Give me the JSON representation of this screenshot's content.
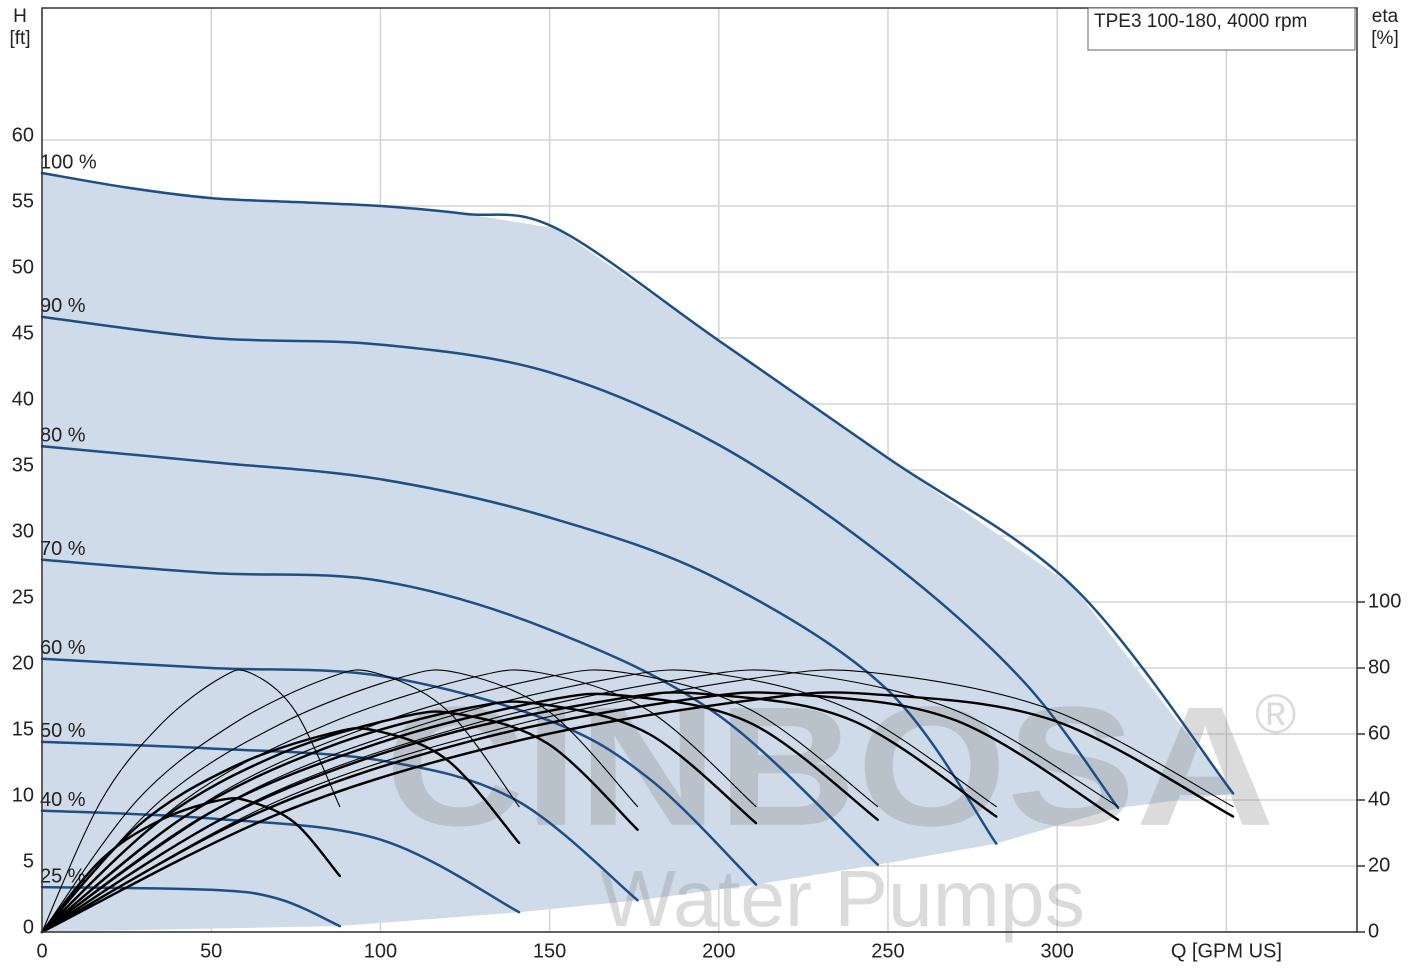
{
  "chart_data": {
    "type": "line",
    "title": "TPE3 100-180, 4000 rpm",
    "ylabel": [
      "H",
      "[ft]"
    ],
    "y2label": [
      "eta",
      "[%]"
    ],
    "watermark": {
      "brand": "CINBOSA",
      "mark": "®",
      "tagline": "Water Pumps"
    },
    "xlim": [
      0,
      388.6
    ],
    "ylim": [
      0,
      70
    ],
    "y2lim": [
      0,
      280
    ],
    "xticks": [
      0,
      50,
      100,
      150,
      200,
      250,
      300,
      {
        "value": 350,
        "label": "Q [GPM US]"
      }
    ],
    "yticks": [
      0,
      5,
      10,
      15,
      20,
      25,
      30,
      35,
      40,
      45,
      50,
      55,
      60
    ],
    "y2ticks": [
      0,
      20,
      40,
      60,
      80,
      100
    ],
    "grid": true,
    "fill_color": "#cfdbe8",
    "series": [
      {
        "name": "100 %",
        "color": "#1c4f86",
        "linewidth": 2.5,
        "x": [
          0,
          25,
          50,
          75,
          100,
          125,
          152,
          200,
          250,
          305,
          352
        ],
        "values": [
          57.5,
          56.4,
          55.6,
          55.3,
          55.0,
          54.4,
          53.3,
          44.8,
          35.9,
          26.1,
          10.5
        ]
      },
      {
        "name": "90 %",
        "color": "#1c4f86",
        "linewidth": 2.5,
        "x": [
          0,
          50,
          100,
          150,
          200,
          250,
          290,
          318
        ],
        "values": [
          46.6,
          45.0,
          44.5,
          42.4,
          36.9,
          28.2,
          19.0,
          9.4
        ]
      },
      {
        "name": "80 %",
        "color": "#1c4f86",
        "linewidth": 2.5,
        "x": [
          0,
          50,
          100,
          150,
          200,
          250,
          282
        ],
        "values": [
          36.8,
          35.6,
          34.3,
          31.4,
          26.7,
          18.3,
          6.7
        ]
      },
      {
        "name": "70 %",
        "color": "#1c4f86",
        "linewidth": 2.5,
        "x": [
          0,
          50,
          100,
          150,
          200,
          247
        ],
        "values": [
          28.2,
          27.2,
          26.6,
          22.9,
          16.4,
          5.1
        ]
      },
      {
        "name": "60 %",
        "color": "#1c4f86",
        "linewidth": 2.5,
        "x": [
          0,
          50,
          100,
          150,
          180,
          211
        ],
        "values": [
          20.7,
          20.0,
          19.4,
          16.0,
          11.5,
          3.6
        ]
      },
      {
        "name": "50 %",
        "color": "#1c4f86",
        "linewidth": 2.5,
        "x": [
          0,
          50,
          100,
          140,
          176
        ],
        "values": [
          14.4,
          13.9,
          13.0,
          10.0,
          2.4
        ]
      },
      {
        "name": "40 %",
        "color": "#1c4f86",
        "linewidth": 2.5,
        "x": [
          0,
          50,
          100,
          141
        ],
        "values": [
          9.2,
          8.6,
          7.0,
          1.5
        ]
      },
      {
        "name": "25 %",
        "color": "#1c4f86",
        "linewidth": 2.5,
        "x": [
          0,
          50,
          70,
          88
        ],
        "values": [
          3.4,
          3.2,
          2.5,
          0.45
        ]
      },
      {
        "color": "#000000",
        "linewidth": 1.1,
        "axis": "y2",
        "x": [
          0,
          17.6,
          35.2,
          52.8,
          61.6,
          74.8,
          88
        ],
        "values": [
          0,
          40,
          63,
          77,
          78.5,
          67,
          38
        ]
      },
      {
        "color": "#000000",
        "linewidth": 1.1,
        "axis": "y2",
        "x": [
          0,
          28.2,
          56.4,
          84.6,
          98.7,
          119.9,
          141
        ],
        "values": [
          0,
          40,
          63,
          77,
          78.5,
          67,
          38
        ]
      },
      {
        "color": "#000000",
        "linewidth": 1.1,
        "axis": "y2",
        "x": [
          0,
          35.2,
          70.4,
          105.6,
          123.2,
          149.6,
          176
        ],
        "values": [
          0,
          40,
          63,
          77,
          78.5,
          67,
          38
        ]
      },
      {
        "color": "#000000",
        "linewidth": 1.1,
        "axis": "y2",
        "x": [
          0,
          42.2,
          84.4,
          126.6,
          147.7,
          179.4,
          211
        ],
        "values": [
          0,
          40,
          63,
          77,
          78.5,
          67,
          38
        ]
      },
      {
        "color": "#000000",
        "linewidth": 1.1,
        "axis": "y2",
        "x": [
          0,
          49.4,
          98.8,
          148.2,
          172.9,
          210,
          247
        ],
        "values": [
          0,
          40,
          63,
          77,
          78.5,
          67,
          38
        ]
      },
      {
        "color": "#000000",
        "linewidth": 1.1,
        "axis": "y2",
        "x": [
          0,
          56.4,
          112.8,
          169.2,
          197.4,
          239.7,
          282
        ],
        "values": [
          0,
          40,
          63,
          77,
          78.5,
          67,
          38
        ]
      },
      {
        "color": "#000000",
        "linewidth": 1.1,
        "axis": "y2",
        "x": [
          0,
          63.6,
          127.2,
          190.8,
          222.6,
          270.3,
          318
        ],
        "values": [
          0,
          40,
          63,
          77,
          78.5,
          67,
          38
        ]
      },
      {
        "color": "#000000",
        "linewidth": 1.1,
        "axis": "y2",
        "x": [
          0,
          70.4,
          140.8,
          211.2,
          246.4,
          299.2,
          352
        ],
        "values": [
          0,
          40,
          63,
          77,
          78.5,
          67,
          38
        ]
      },
      {
        "color": "#000000",
        "linewidth": 2.4,
        "axis": "y2",
        "x": [
          0,
          17.6,
          35.2,
          52.8,
          61.6,
          74.8,
          88
        ],
        "values": [
          0,
          22,
          34,
          40,
          39.5,
          33,
          17
        ]
      },
      {
        "color": "#000000",
        "linewidth": 2.4,
        "axis": "y2",
        "x": [
          0,
          28.2,
          56.4,
          84.6,
          98.7,
          119.9,
          141
        ],
        "values": [
          0,
          32,
          50,
          60,
          61,
          52,
          27
        ]
      },
      {
        "color": "#000000",
        "linewidth": 2.4,
        "axis": "y2",
        "x": [
          0,
          35.2,
          70.4,
          105.6,
          123.2,
          149.6,
          176
        ],
        "values": [
          0,
          34,
          54,
          65,
          66,
          57,
          31
        ]
      },
      {
        "color": "#000000",
        "linewidth": 2.4,
        "axis": "y2",
        "x": [
          0,
          42.2,
          84.4,
          126.6,
          147.7,
          179.4,
          211
        ],
        "values": [
          0,
          35,
          56,
          68,
          69,
          60,
          33
        ]
      },
      {
        "color": "#000000",
        "linewidth": 2.4,
        "axis": "y2",
        "x": [
          0,
          49.4,
          98.8,
          148.2,
          172.9,
          210,
          247
        ],
        "values": [
          0,
          36,
          57,
          70,
          71.5,
          63,
          34
        ]
      },
      {
        "color": "#000000",
        "linewidth": 2.4,
        "axis": "y2",
        "x": [
          0,
          56.4,
          112.8,
          169.2,
          197.4,
          239.7,
          282
        ],
        "values": [
          0,
          36,
          58,
          70.5,
          72,
          64,
          35
        ]
      },
      {
        "color": "#000000",
        "linewidth": 2.4,
        "axis": "y2",
        "x": [
          0,
          63.6,
          127.2,
          190.8,
          222.6,
          270.3,
          318
        ],
        "values": [
          0,
          36,
          58,
          70.5,
          72,
          64,
          34
        ]
      },
      {
        "color": "#000000",
        "linewidth": 2.4,
        "axis": "y2",
        "x": [
          0,
          70.4,
          140.8,
          211.2,
          246.4,
          299.2,
          352
        ],
        "values": [
          0,
          36,
          58,
          70.5,
          72,
          64,
          35
        ]
      }
    ]
  }
}
